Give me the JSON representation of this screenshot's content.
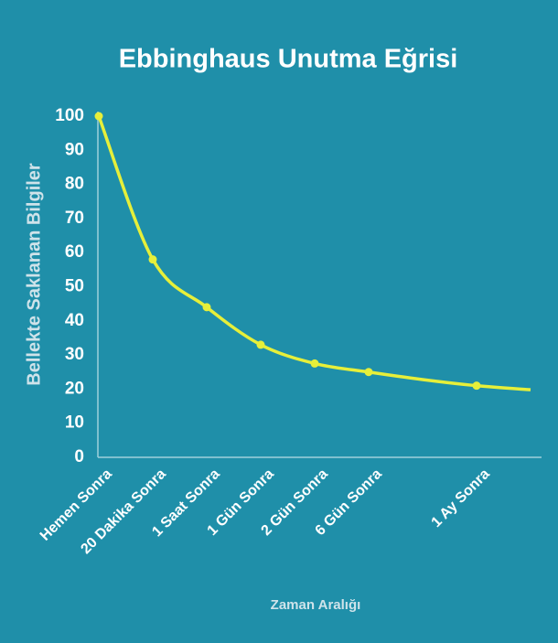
{
  "chart_data": {
    "type": "line",
    "title": "Ebbinghaus Unutma Eğrisi",
    "xlabel": "Zaman Aralığı",
    "ylabel": "Bellekte Saklanan Bilgiler",
    "categories": [
      "Hemen Sonra",
      "20 Dakika Sonra",
      "1 Saat Sonra",
      "1 Gün Sonra",
      "2 Gün Sonra",
      "6 Gün Sonra",
      null,
      "1 Ay Sonra",
      null
    ],
    "values": [
      100,
      58,
      44,
      33,
      27.5,
      25,
      22.8,
      21,
      19.8
    ],
    "color": "#e6ef3a",
    "ylim": [
      0,
      100
    ],
    "yticks": [
      0,
      10,
      20,
      30,
      40,
      50,
      60,
      70,
      80,
      90,
      100
    ],
    "grid": false
  }
}
